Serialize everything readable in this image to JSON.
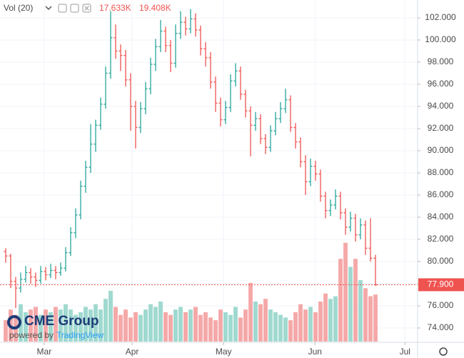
{
  "chart_data": {
    "type": "ohlc",
    "legend": {
      "label": "Vol (20)",
      "values": [
        "17.633K",
        "19.408K"
      ]
    },
    "logo": {
      "name": "CME Group",
      "powered": "powered by",
      "brand": "TradingView"
    },
    "up_color": "#26a69a",
    "down_color": "#ef5350",
    "volume_up_color": "#9fd9cf",
    "volume_down_color": "#f5a8a8",
    "open": [
      80.9,
      80.5,
      78.2,
      77.6,
      78.4,
      79.0,
      78.6,
      78.3,
      79.1,
      78.8,
      79.2,
      79.0,
      79.4,
      80.8,
      82.6,
      84.2,
      86.8,
      88.5,
      90.6,
      92.3,
      94.2,
      97.0,
      100.2,
      99.0,
      98.6,
      96.4,
      94.0,
      92.1,
      93.8,
      95.6,
      97.8,
      99.4,
      100.8,
      99.5,
      97.9,
      100.6,
      101.6,
      101.0,
      101.9,
      100.9,
      99.2,
      98.4,
      96.2,
      94.3,
      92.8,
      93.9,
      96.3,
      97.2,
      95.1,
      93.6,
      92.3,
      92.9,
      91.1,
      90.3,
      91.8,
      92.9,
      93.8,
      94.6,
      92.1,
      90.8,
      89.0,
      87.2,
      88.6,
      87.9,
      85.9,
      84.6,
      85.1,
      85.9,
      84.4,
      83.1,
      83.9,
      82.4,
      83.3,
      81.2,
      80.3
    ],
    "high": [
      81.2,
      80.7,
      78.6,
      79.0,
      79.6,
      79.4,
      79.0,
      79.6,
      79.5,
      79.8,
      79.6,
      79.9,
      81.3,
      83.1,
      84.8,
      87.3,
      89.1,
      92.4,
      92.8,
      94.8,
      97.6,
      102.6,
      101.4,
      99.6,
      99.1,
      97.0,
      94.5,
      94.4,
      96.2,
      98.4,
      100.1,
      101.8,
      101.2,
      100.0,
      101.4,
      102.6,
      102.1,
      102.8,
      102.4,
      101.3,
      99.8,
      98.9,
      96.7,
      94.8,
      94.5,
      96.9,
      97.9,
      97.6,
      95.5,
      94.0,
      93.5,
      93.3,
      91.5,
      92.3,
      93.5,
      94.4,
      95.6,
      95.0,
      92.5,
      91.2,
      89.6,
      89.3,
      89.1,
      88.3,
      86.3,
      85.6,
      86.5,
      86.3,
      84.8,
      84.5,
      84.3,
      83.9,
      83.7,
      83.9,
      80.6
    ],
    "low": [
      79.9,
      77.6,
      75.8,
      77.2,
      78.1,
      78.0,
      77.7,
      78.0,
      78.3,
      78.5,
      78.4,
      78.7,
      79.1,
      80.5,
      82.1,
      83.8,
      86.2,
      88.0,
      89.9,
      91.9,
      93.8,
      96.5,
      98.3,
      97.2,
      95.8,
      91.8,
      90.2,
      91.6,
      93.3,
      95.1,
      97.2,
      98.9,
      98.9,
      97.1,
      97.5,
      100.1,
      100.4,
      100.6,
      100.3,
      98.6,
      97.6,
      95.6,
      93.5,
      92.2,
      92.4,
      93.5,
      95.8,
      94.6,
      93.0,
      89.5,
      91.8,
      90.6,
      89.7,
      89.9,
      91.4,
      92.5,
      93.4,
      91.7,
      90.2,
      88.5,
      86.0,
      86.8,
      87.3,
      85.4,
      83.9,
      84.1,
      84.7,
      83.8,
      82.4,
      82.7,
      81.8,
      82.0,
      80.6,
      80.0,
      77.8
    ],
    "close": [
      80.5,
      78.2,
      77.6,
      78.4,
      79.0,
      78.6,
      78.3,
      79.1,
      78.8,
      79.2,
      79.0,
      79.4,
      80.8,
      82.6,
      84.2,
      86.8,
      88.5,
      90.6,
      92.3,
      94.2,
      97.0,
      100.2,
      99.0,
      98.6,
      96.4,
      94.0,
      92.1,
      93.8,
      95.6,
      97.8,
      99.4,
      100.8,
      99.5,
      97.9,
      100.6,
      101.6,
      101.0,
      101.9,
      100.9,
      99.2,
      98.4,
      96.2,
      94.3,
      92.8,
      93.9,
      96.3,
      97.2,
      95.1,
      93.6,
      92.3,
      92.9,
      91.1,
      90.3,
      91.8,
      92.9,
      93.8,
      94.6,
      92.1,
      90.8,
      89.0,
      87.2,
      88.6,
      87.9,
      85.9,
      84.6,
      85.1,
      85.9,
      84.4,
      83.1,
      83.9,
      82.4,
      83.3,
      81.2,
      80.3,
      77.9
    ],
    "volume": [
      8,
      12,
      10,
      14,
      11,
      12,
      13,
      10,
      12,
      11,
      13,
      12,
      14,
      12,
      10,
      11,
      13,
      12,
      14,
      12,
      16,
      19,
      13,
      10,
      12,
      9,
      11,
      10,
      12,
      14,
      13,
      15,
      11,
      10,
      12,
      13,
      11,
      12,
      13,
      10,
      11,
      9,
      8,
      12,
      11,
      10,
      13,
      9,
      12,
      22,
      15,
      14,
      16,
      12,
      11,
      10,
      9,
      8,
      11,
      14,
      12,
      13,
      11,
      15,
      18,
      16,
      17,
      31,
      37,
      28,
      31,
      23,
      20,
      17,
      17.633
    ],
    "volume_lim": [
      0,
      128
    ],
    "last_price": {
      "value": 77.9,
      "label": "77.900"
    },
    "xlim": [
      -1.14,
      82.43
    ],
    "xticks": [
      {
        "value": 7.7,
        "label": "Mar"
      },
      {
        "value": 25.3,
        "label": "Apr"
      },
      {
        "value": 43.6,
        "label": "May"
      },
      {
        "value": 61.9,
        "label": "Jun"
      },
      {
        "value": 79.9,
        "label": "Jul"
      }
    ],
    "ylim": [
      72.77,
      103.61
    ],
    "yticks": [
      {
        "value": 74,
        "label": "74.000"
      },
      {
        "value": 76,
        "label": "76.000"
      },
      {
        "value": 78,
        "label": "78.000"
      },
      {
        "value": 80,
        "label": "80.000"
      },
      {
        "value": 82,
        "label": "82.000"
      },
      {
        "value": 84,
        "label": "84.000"
      },
      {
        "value": 86,
        "label": "86.000"
      },
      {
        "value": 88,
        "label": "88.000"
      },
      {
        "value": 90,
        "label": "90.000"
      },
      {
        "value": 92,
        "label": "92.000"
      },
      {
        "value": 94,
        "label": "94.000"
      },
      {
        "value": 96,
        "label": "96.000"
      },
      {
        "value": 98,
        "label": "98.000"
      },
      {
        "value": 100,
        "label": "100.000"
      },
      {
        "value": 102,
        "label": "102.000"
      }
    ],
    "grid": true
  }
}
